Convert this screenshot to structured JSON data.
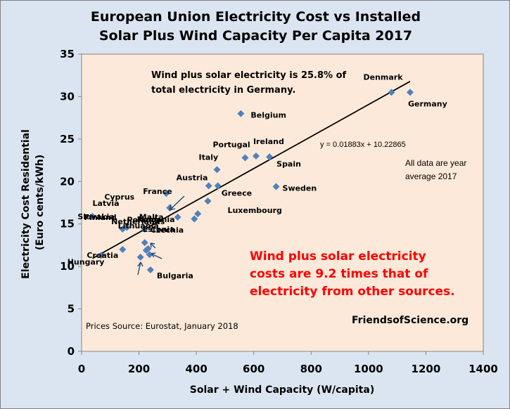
{
  "chart_data": {
    "type": "scatter",
    "title": [
      "European Union Electricity Cost vs Installed",
      "Solar Plus Wind Capacity Per Capita 2017"
    ],
    "xlabel": "Solar + Wind Capacity (W/capita)",
    "ylabel": [
      "Electricity Cost Residential",
      "(Euro cents/kWh)"
    ],
    "xlim": [
      0,
      1400
    ],
    "ylim": [
      0,
      35
    ],
    "xticks": [
      "0",
      "200",
      "400",
      "600",
      "800",
      "1000",
      "1200",
      "1400"
    ],
    "yticks": [
      "0",
      "5",
      "10",
      "15",
      "20",
      "25",
      "30",
      "35"
    ],
    "grid": false,
    "marker_color": "#4f81bd",
    "plot_background": "#fde9d9",
    "chart_background": "#dbe5f1",
    "points": [
      {
        "label": "Denmark",
        "x": 1080,
        "y": 30.5
      },
      {
        "label": "Germany",
        "x": 1145,
        "y": 30.5
      },
      {
        "label": "Belgium",
        "x": 555,
        "y": 28.0
      },
      {
        "label": "Portugal",
        "x": 570,
        "y": 22.8
      },
      {
        "label": "Ireland",
        "x": 608,
        "y": 23.0
      },
      {
        "label": "Spain",
        "x": 655,
        "y": 22.9
      },
      {
        "label": "Italy",
        "x": 472,
        "y": 21.4
      },
      {
        "label": "Austria",
        "x": 443,
        "y": 19.5
      },
      {
        "label": "Greece",
        "x": 475,
        "y": 19.5
      },
      {
        "label": "Sweden",
        "x": 678,
        "y": 19.4
      },
      {
        "label": "Cyprus",
        "x": 295,
        "y": 18.6
      },
      {
        "label": "France",
        "x": 307,
        "y": 16.9
      },
      {
        "label": "Finland",
        "x": 335,
        "y": 15.8
      },
      {
        "label": "Luxembourg",
        "x": 440,
        "y": 17.7
      },
      {
        "label": "Netherlands",
        "x": 405,
        "y": 16.2
      },
      {
        "label": "",
        "x": 393,
        "y": 15.6
      },
      {
        "label": "Latvia",
        "x": 38,
        "y": 15.9
      },
      {
        "label": "Poland",
        "x": 158,
        "y": 14.6
      },
      {
        "label": "Slovakia",
        "x": 143,
        "y": 14.4
      },
      {
        "label": "Czechia",
        "x": 220,
        "y": 14.4
      },
      {
        "label": "Malta",
        "x": 220,
        "y": 12.8
      },
      {
        "label": "Estonia",
        "x": 232,
        "y": 12.1
      },
      {
        "label": "Croatia",
        "x": 143,
        "y": 12.0
      },
      {
        "label": "",
        "x": 225,
        "y": 11.9
      },
      {
        "label": "Romania",
        "x": 237,
        "y": 11.4
      },
      {
        "label": "Lithuania",
        "x": 205,
        "y": 11.1
      },
      {
        "label": "Hungary",
        "x": 68,
        "y": 11.3
      },
      {
        "label": "Bulgaria",
        "x": 240,
        "y": 9.6
      }
    ],
    "trendline": {
      "equation": "y = 0.01883x + 10.22865",
      "slope": 0.01883,
      "intercept": 10.22865,
      "x_range": [
        38,
        1145
      ]
    },
    "annotations": {
      "top_note": [
        "Wind plus solar  electricity is 25.8% of",
        "total electricity in Germany."
      ],
      "data_year": [
        "All data are year",
        "average 2017"
      ],
      "cost_note": [
        "Wind plus solar electricity",
        "costs are 9.2 times that of",
        "electricity from other sources."
      ],
      "cost_note_color": "#ff0000",
      "source": "Prices Source: Eurostat, January 2018",
      "website": "FriendsofScience.org"
    }
  }
}
